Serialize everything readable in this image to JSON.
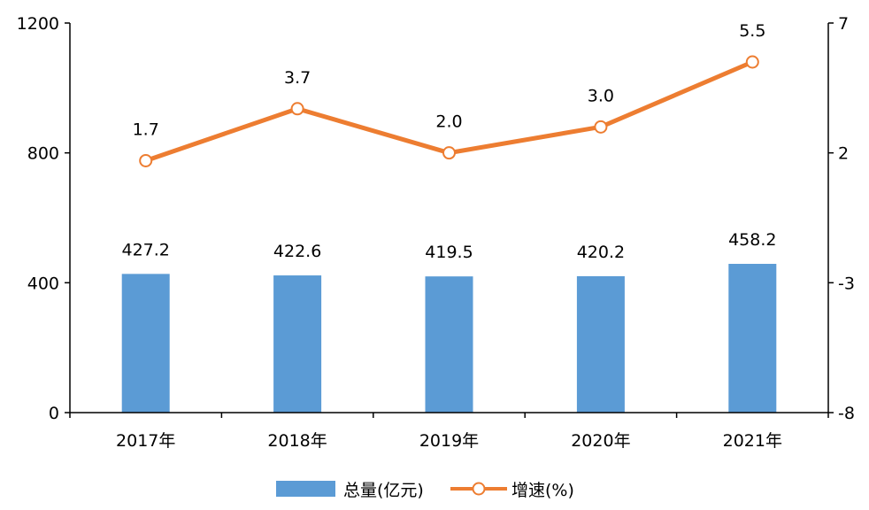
{
  "chart_data": {
    "type": "bar",
    "title": "",
    "categories": [
      "2017年",
      "2018年",
      "2019年",
      "2020年",
      "2021年"
    ],
    "series": [
      {
        "name": "总量(亿元)",
        "type": "bar",
        "axis": "left",
        "color": "#5B9BD5",
        "values": [
          427.2,
          422.6,
          419.5,
          420.2,
          458.2
        ],
        "labels": [
          "427.2",
          "422.6",
          "419.5",
          "420.2",
          "458.2"
        ]
      },
      {
        "name": "增速(%)",
        "type": "line",
        "axis": "right",
        "color": "#ED7D31",
        "values": [
          1.7,
          3.7,
          2.0,
          3.0,
          5.5
        ],
        "labels": [
          "1.7",
          "3.7",
          "2.0",
          "3.0",
          "5.5"
        ]
      }
    ],
    "y_left": {
      "min": 0,
      "max": 1200,
      "ticks": [
        0,
        400,
        800,
        1200
      ],
      "tick_labels": [
        "0",
        "400",
        "800",
        "1200"
      ]
    },
    "y_right": {
      "min": -8,
      "max": 7,
      "ticks": [
        -8,
        -3,
        2,
        7
      ],
      "tick_labels": [
        "-8",
        "-3",
        "2",
        "7"
      ]
    },
    "legend": {
      "position": "bottom"
    },
    "grid": false
  }
}
